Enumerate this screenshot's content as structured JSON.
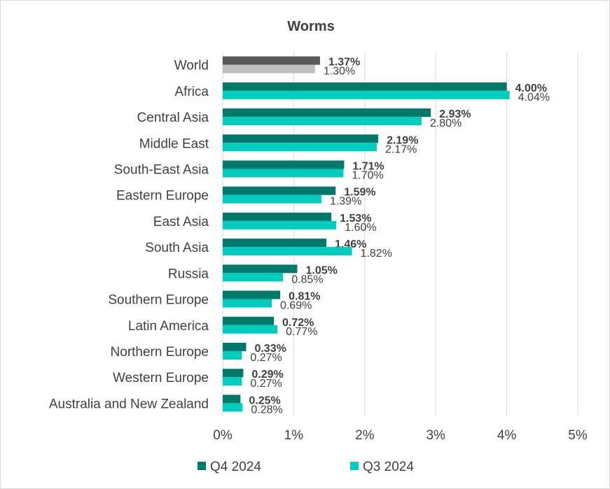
{
  "chart_data": {
    "type": "bar",
    "orientation": "horizontal",
    "title": "Worms",
    "categories": [
      "World",
      "Africa",
      "Central Asia",
      "Middle East",
      "South-East Asia",
      "Eastern Europe",
      "East Asia",
      "South Asia",
      "Russia",
      "Southern Europe",
      "Latin America",
      "Northern Europe",
      "Western Europe",
      "Australia and New Zealand"
    ],
    "series": [
      {
        "name": "Q4 2024",
        "values": [
          1.37,
          4.0,
          2.93,
          2.19,
          1.71,
          1.59,
          1.53,
          1.46,
          1.05,
          0.81,
          0.72,
          0.33,
          0.29,
          0.25
        ],
        "labels": [
          "1.37%",
          "4.00%",
          "2.93%",
          "2.19%",
          "1.71%",
          "1.59%",
          "1.53%",
          "1.46%",
          "1.05%",
          "0.81%",
          "0.72%",
          "0.33%",
          "0.29%",
          "0.25%"
        ],
        "color": "#00796b",
        "highlight_color": "#595959"
      },
      {
        "name": "Q3 2024",
        "values": [
          1.3,
          4.04,
          2.8,
          2.17,
          1.7,
          1.39,
          1.6,
          1.82,
          0.85,
          0.69,
          0.77,
          0.27,
          0.27,
          0.28
        ],
        "labels": [
          "1.30%",
          "4.04%",
          "2.80%",
          "2.17%",
          "1.70%",
          "1.39%",
          "1.60%",
          "1.82%",
          "0.85%",
          "0.69%",
          "0.77%",
          "0.27%",
          "0.27%",
          "0.28%"
        ],
        "color": "#00ccbf",
        "highlight_color": "#bfbfbf"
      }
    ],
    "xlim": [
      0,
      5
    ],
    "xticks": [
      "0%",
      "1%",
      "2%",
      "3%",
      "4%",
      "5%"
    ],
    "grid": true,
    "legend_position": "bottom"
  }
}
